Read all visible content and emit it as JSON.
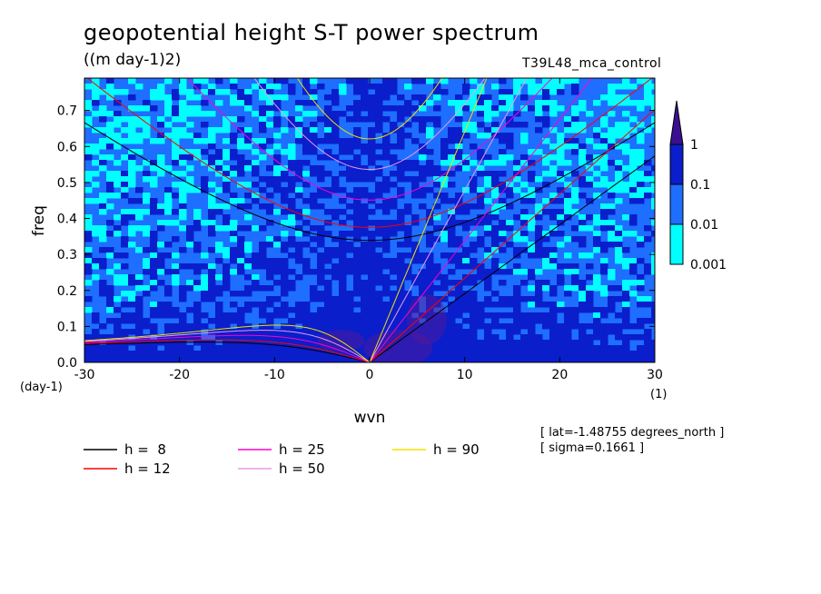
{
  "header": {
    "title": "geopotential height S-T power spectrum",
    "units": "((m day-1)2)",
    "run_name": "T39L48_mca_control"
  },
  "footer": {
    "lat_note": "[ lat=-1.48755 degrees_north ]",
    "sigma_note": "[ sigma=0.1661 ]"
  },
  "chart_data": {
    "type": "heatmap",
    "title": "geopotential height S-T power spectrum",
    "xlabel": "wvn",
    "ylabel": "freq",
    "x_unit": "(1)",
    "y_unit": "(day-1)",
    "xlim": [
      -30,
      30
    ],
    "ylim": [
      0,
      0.79
    ],
    "x_ticks": [
      -30,
      -20,
      -10,
      0,
      10,
      20,
      30
    ],
    "x_tick_labels": [
      "-30",
      "-20",
      "-10",
      "0",
      "10",
      "20",
      "30"
    ],
    "y_ticks": [
      0,
      0.1,
      0.2,
      0.3,
      0.4,
      0.5,
      0.6,
      0.7
    ],
    "y_tick_labels": [
      "0.0",
      "0.1",
      "0.2",
      "0.3",
      "0.4",
      "0.5",
      "0.6",
      "0.7"
    ],
    "colorbar": {
      "levels": [
        0.001,
        0.01,
        0.1,
        1
      ],
      "labels": [
        "0.001",
        "0.01",
        "0.1",
        "1"
      ],
      "colors": [
        "#00ffff",
        "#1e6eff",
        "#0a1ecc",
        "#3a1090"
      ]
    },
    "dispersion_curves": [
      {
        "name": "h =  8",
        "h": 8,
        "color": "#000000"
      },
      {
        "name": "h = 12",
        "h": 12,
        "color": "#ff0000"
      },
      {
        "name": "h = 25",
        "h": 25,
        "color": "#ff00cc"
      },
      {
        "name": "h = 50",
        "h": 50,
        "color": "#e89be8"
      },
      {
        "name": "h = 90",
        "h": 90,
        "color": "#f0e000"
      }
    ]
  }
}
